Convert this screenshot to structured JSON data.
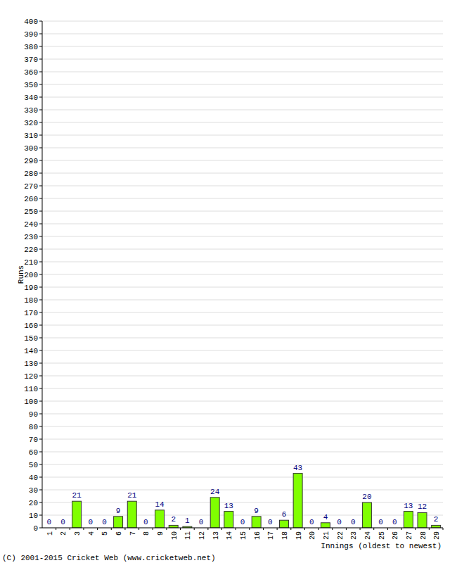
{
  "chart_data": {
    "type": "bar",
    "x_label": "Innings (oldest to newest)",
    "y_label": "Runs",
    "annotations": [
      "(C) 2001-2015 Cricket Web (www.cricketweb.net)"
    ],
    "categories": [
      "1",
      "2",
      "3",
      "4",
      "5",
      "6",
      "7",
      "8",
      "9",
      "10",
      "11",
      "12",
      "13",
      "14",
      "15",
      "16",
      "17",
      "18",
      "19",
      "20",
      "21",
      "22",
      "23",
      "24",
      "25",
      "26",
      "27",
      "28",
      "29"
    ],
    "values": [
      0,
      0,
      21,
      0,
      0,
      9,
      21,
      0,
      14,
      2,
      1,
      0,
      24,
      13,
      0,
      9,
      0,
      6,
      43,
      0,
      4,
      0,
      0,
      20,
      0,
      0,
      13,
      12,
      2
    ],
    "color": "#80ff00",
    "ylim": [
      0,
      400
    ],
    "yticks": [
      0,
      10,
      20,
      30,
      40,
      50,
      60,
      70,
      80,
      90,
      100,
      110,
      120,
      130,
      140,
      150,
      160,
      170,
      180,
      190,
      200,
      210,
      220,
      230,
      240,
      250,
      260,
      270,
      280,
      290,
      300,
      310,
      320,
      330,
      340,
      350,
      360,
      370,
      380,
      390,
      400
    ],
    "grid": true,
    "data_labels": true
  }
}
